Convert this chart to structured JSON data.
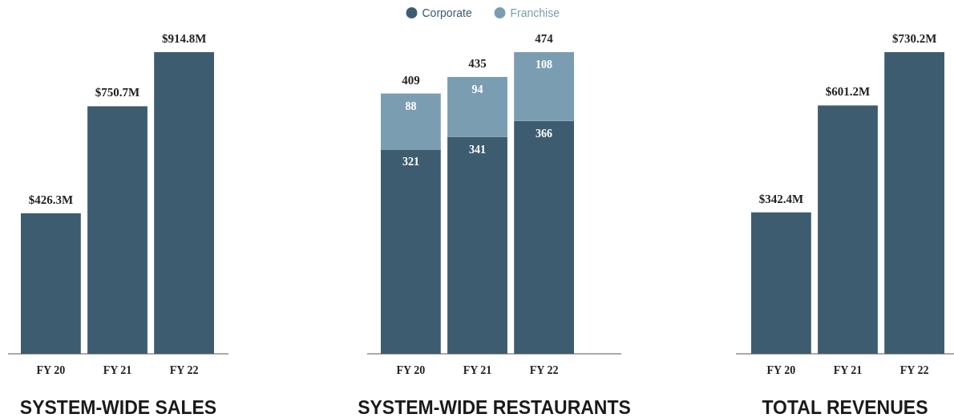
{
  "chart_data": [
    {
      "type": "bar",
      "title": "SYSTEM-WIDE SALES",
      "categories": [
        "FY 20",
        "FY 21",
        "FY 22"
      ],
      "values": [
        426.3,
        750.7,
        914.8
      ],
      "color": "#3d5c70",
      "value_labels": [
        "$426.3M",
        "$750.7M",
        "$914.8M"
      ]
    },
    {
      "type": "bar",
      "title": "SYSTEM-WIDE RESTAURANTS",
      "categories": [
        "FY 20",
        "FY 21",
        "FY 22"
      ],
      "stacked": true,
      "data_labels": true,
      "totals": [
        "409",
        "435",
        "474"
      ],
      "legend": "top",
      "series": [
        {
          "name": "Corporate",
          "color": "#3d5c70",
          "values": [
            321,
            341,
            366
          ]
        },
        {
          "name": "Franchise",
          "color": "#7a9db2",
          "values": [
            88,
            94,
            108
          ]
        }
      ]
    },
    {
      "type": "bar",
      "title": "TOTAL REVENUES",
      "categories": [
        "FY 20",
        "FY 21",
        "FY 22"
      ],
      "values": [
        342.4,
        601.2,
        730.2
      ],
      "color": "#3d5c70",
      "value_labels": [
        "$342.4M",
        "$601.2M",
        "$730.2M"
      ]
    }
  ]
}
